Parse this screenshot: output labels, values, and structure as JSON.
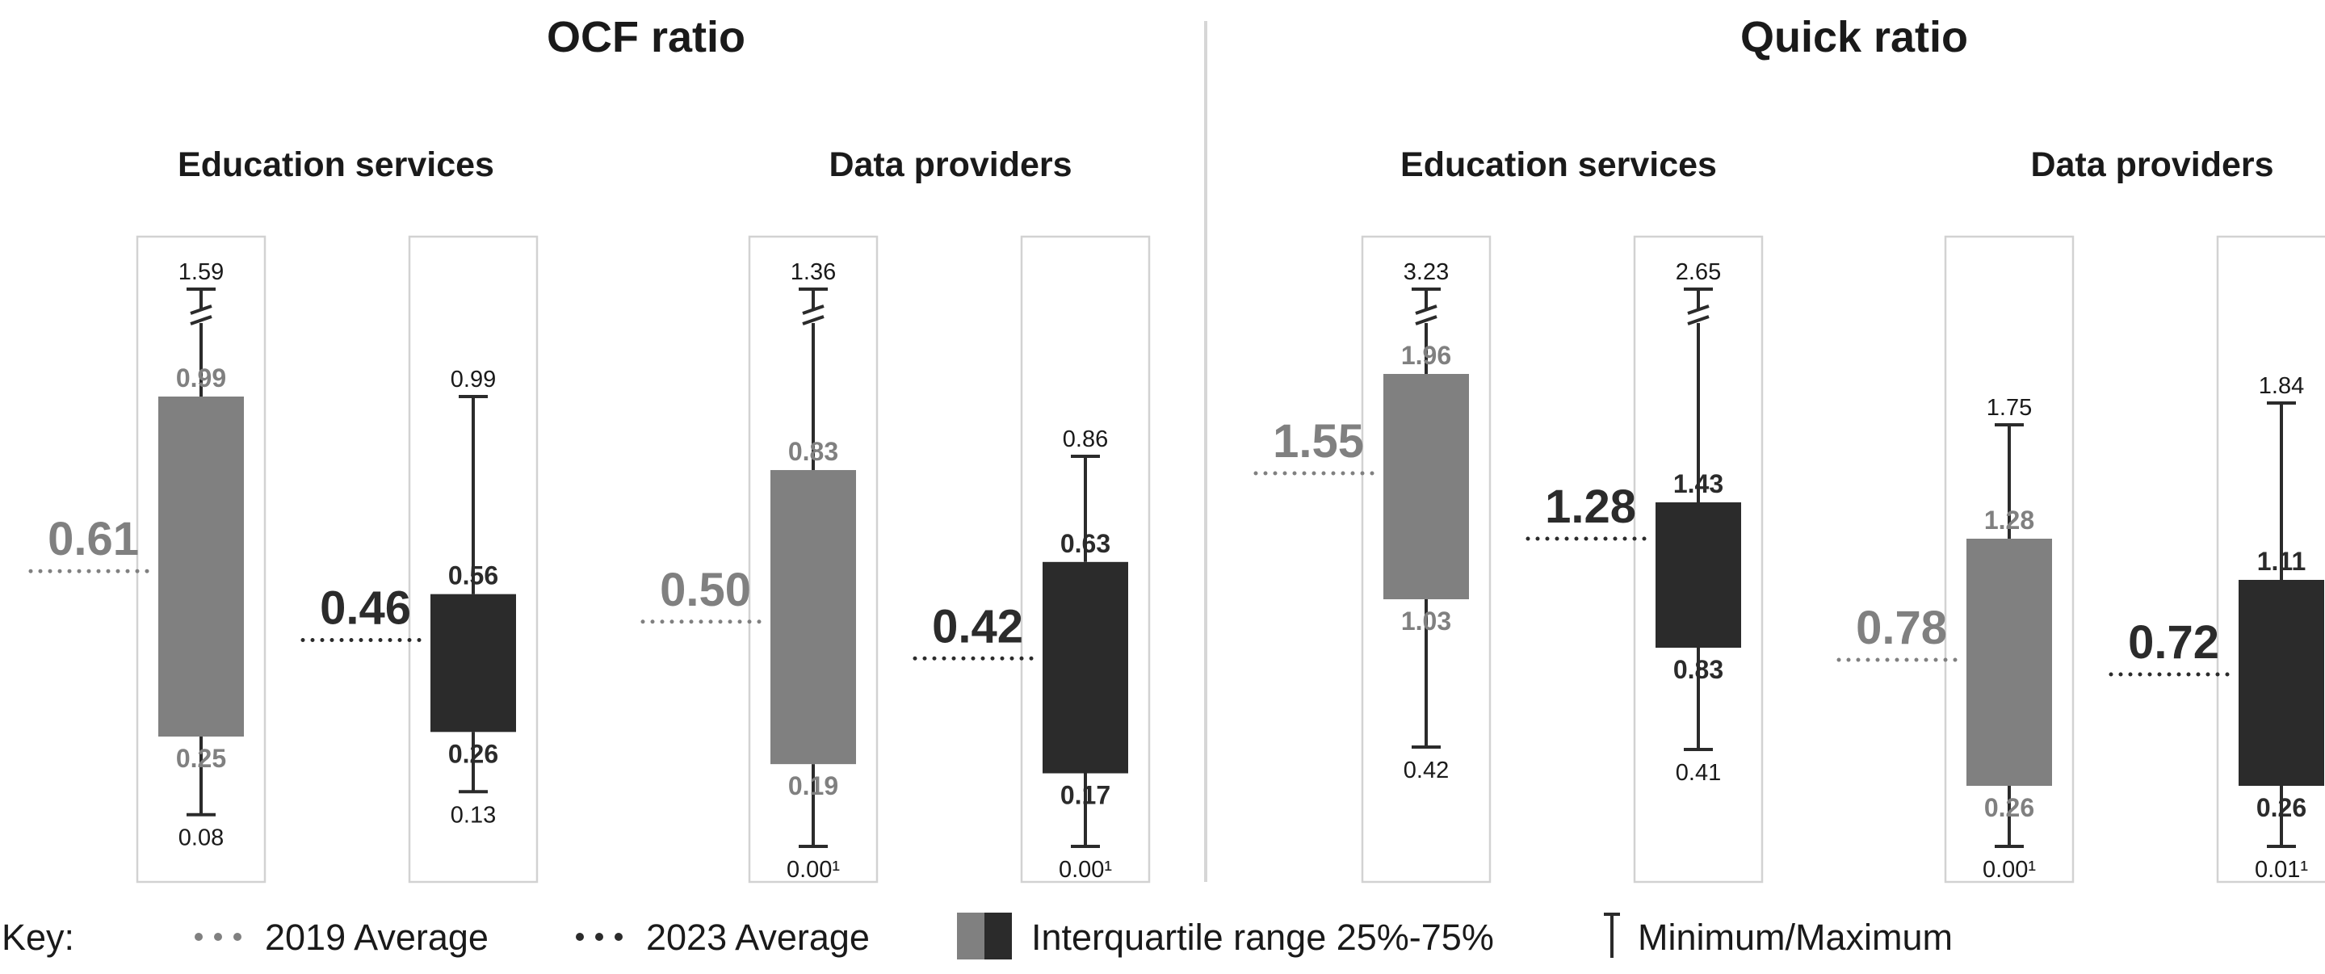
{
  "chart_data": {
    "type": "boxplot",
    "panels": [
      {
        "title": "OCF ratio",
        "groups": [
          {
            "name": "Education services",
            "boxes": [
              {
                "year": "2019",
                "min": 0.08,
                "min_label": "0.08",
                "q1": 0.25,
                "q1_label": "0.25",
                "q3": 0.99,
                "q3_label": "0.99",
                "max": 1.59,
                "max_label": "1.59",
                "max_broken": true,
                "average": 0.61,
                "average_label": "0.61"
              },
              {
                "year": "2023",
                "min": 0.13,
                "min_label": "0.13",
                "q1": 0.26,
                "q1_label": "0.26",
                "q3": 0.56,
                "q3_label": "0.56",
                "max": 0.99,
                "max_label": "0.99",
                "max_broken": false,
                "average": 0.46,
                "average_label": "0.46"
              }
            ]
          },
          {
            "name": "Data providers",
            "boxes": [
              {
                "year": "2019",
                "min": 0.0,
                "min_label": "0.00",
                "min_footnote": "1",
                "q1": 0.19,
                "q1_label": "0.19",
                "q3": 0.83,
                "q3_label": "0.83",
                "max": 1.36,
                "max_label": "1.36",
                "max_broken": true,
                "average": 0.5,
                "average_label": "0.50"
              },
              {
                "year": "2023",
                "min": 0.0,
                "min_label": "0.00",
                "min_footnote": "1",
                "q1": 0.17,
                "q1_label": "0.17",
                "q3": 0.63,
                "q3_label": "0.63",
                "max": 0.86,
                "max_label": "0.86",
                "max_broken": false,
                "average": 0.42,
                "average_label": "0.42"
              }
            ]
          }
        ]
      },
      {
        "title": "Quick ratio",
        "groups": [
          {
            "name": "Education services",
            "boxes": [
              {
                "year": "2019",
                "min": 0.42,
                "min_label": "0.42",
                "q1": 1.03,
                "q1_label": "1.03",
                "q3": 1.96,
                "q3_label": "1.96",
                "max": 3.23,
                "max_label": "3.23",
                "max_broken": true,
                "average": 1.55,
                "average_label": "1.55"
              },
              {
                "year": "2023",
                "min": 0.41,
                "min_label": "0.41",
                "q1": 0.83,
                "q1_label": "0.83",
                "q3": 1.43,
                "q3_label": "1.43",
                "max": 2.65,
                "max_label": "2.65",
                "max_broken": true,
                "average": 1.28,
                "average_label": "1.28"
              }
            ]
          },
          {
            "name": "Data providers",
            "boxes": [
              {
                "year": "2019",
                "min": 0.0,
                "min_label": "0.00",
                "min_footnote": "1",
                "q1": 0.26,
                "q1_label": "0.26",
                "q3": 1.28,
                "q3_label": "1.28",
                "max": 1.75,
                "max_label": "1.75",
                "max_broken": false,
                "average": 0.78,
                "average_label": "0.78"
              },
              {
                "year": "2023",
                "min": 0.01,
                "min_label": "0.01",
                "min_footnote": "1",
                "q1": 0.26,
                "q1_label": "0.26",
                "q3": 1.11,
                "q3_label": "1.11",
                "max": 1.84,
                "max_label": "1.84",
                "max_broken": false,
                "average": 0.72,
                "average_label": "0.72"
              }
            ]
          }
        ]
      }
    ],
    "legend": {
      "prefix": "Key:",
      "items": [
        {
          "kind": "dots-2019",
          "label": "2019 Average"
        },
        {
          "kind": "dots-2023",
          "label": "2023 Average"
        },
        {
          "kind": "iqr",
          "label": "Interquartile range 25%-75%"
        },
        {
          "kind": "whisker",
          "label": "Minimum/Maximum"
        }
      ],
      "placement": "bottom"
    },
    "colors": {
      "y2019": "#808080",
      "y2023": "#2b2b2b",
      "frame": "#d2d2d2",
      "divider": "#d6d6d6",
      "text": "#1a1a1a"
    }
  }
}
